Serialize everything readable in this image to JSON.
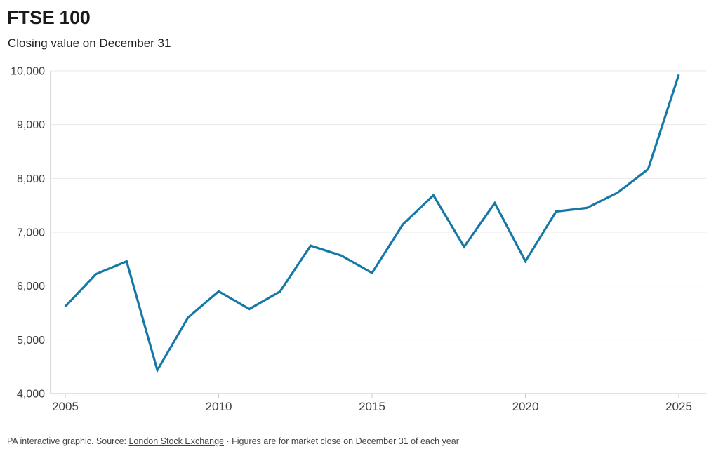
{
  "header": {
    "title": "FTSE 100",
    "subtitle": "Closing value on December 31"
  },
  "footer": {
    "prefix": "PA interactive graphic. Source: ",
    "source_link": "London Stock Exchange",
    "suffix": " · Figures are for market close on December 31 of each year"
  },
  "chart_data": {
    "type": "line",
    "title": "FTSE 100",
    "subtitle": "Closing value on December 31",
    "xlabel": "",
    "ylabel": "",
    "grid": "horizontal",
    "legend_position": "none",
    "xlim": [
      2005,
      2025
    ],
    "ylim": [
      4000,
      10000
    ],
    "x": [
      2005,
      2006,
      2007,
      2008,
      2009,
      2010,
      2011,
      2012,
      2013,
      2014,
      2015,
      2016,
      2017,
      2018,
      2019,
      2020,
      2021,
      2022,
      2023,
      2024,
      2025
    ],
    "series": [
      {
        "name": "FTSE 100 closing value",
        "values": [
          5618.8,
          6220.8,
          6456.9,
          4434.2,
          5412.9,
          5899.9,
          5572.3,
          5897.8,
          6749.1,
          6566.1,
          6242.3,
          7142.8,
          7687.8,
          6728.1,
          7542.4,
          6460.5,
          7384.5,
          7451.7,
          7733.2,
          8173.0,
          9930.0
        ]
      }
    ],
    "y_ticks": [
      {
        "value": 4000,
        "label": "4,000"
      },
      {
        "value": 5000,
        "label": "5,000"
      },
      {
        "value": 6000,
        "label": "6,000"
      },
      {
        "value": 7000,
        "label": "7,000"
      },
      {
        "value": 8000,
        "label": "8,000"
      },
      {
        "value": 9000,
        "label": "9,000"
      },
      {
        "value": 10000,
        "label": "10,000"
      }
    ],
    "x_ticks": [
      {
        "value": 2005,
        "label": "2005"
      },
      {
        "value": 2010,
        "label": "2010"
      },
      {
        "value": 2015,
        "label": "2015"
      },
      {
        "value": 2020,
        "label": "2020"
      },
      {
        "value": 2025,
        "label": "2025"
      }
    ]
  },
  "colors": {
    "line": "#1578a6",
    "gridline": "#e9e9e9",
    "axis_line": "#c4c4c4",
    "tick_mark": "#c9c9c9",
    "plot_border": "#d9d9d9",
    "axis_text": "#404040",
    "background": "#ffffff"
  }
}
